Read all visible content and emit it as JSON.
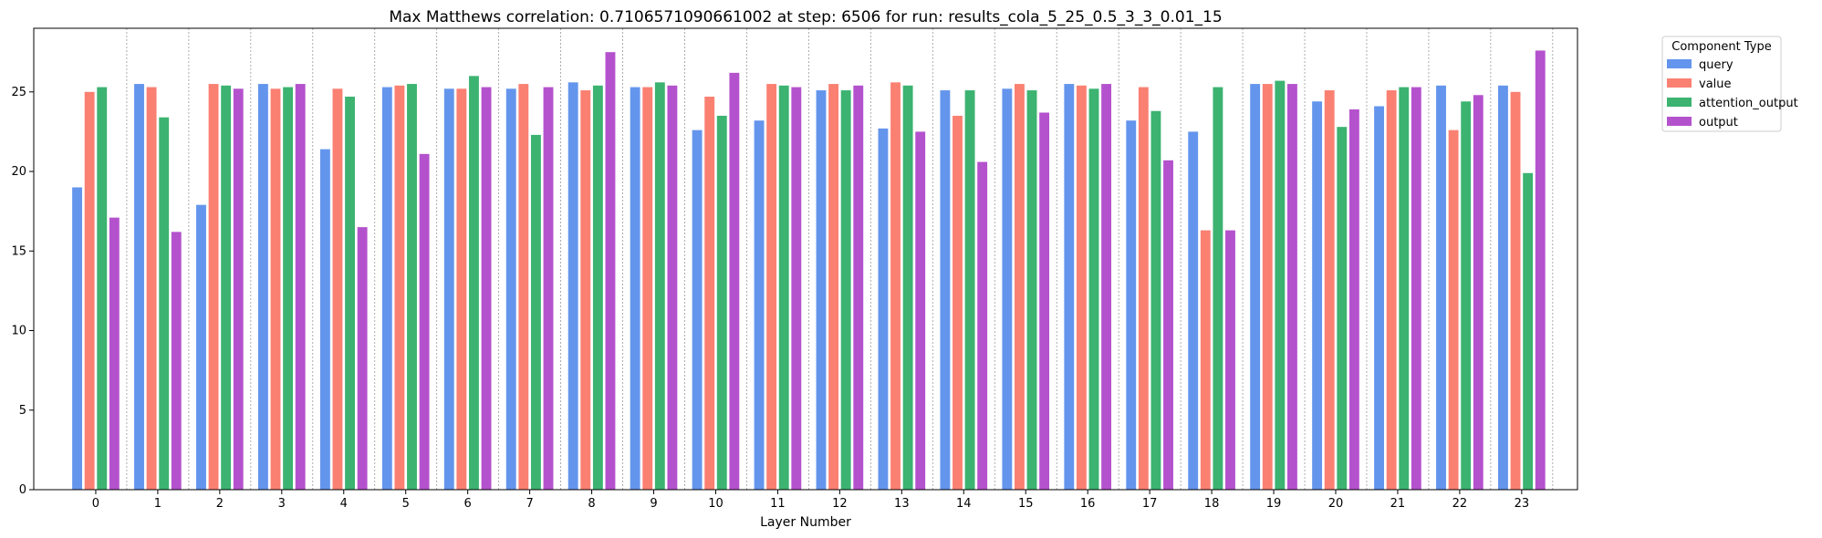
{
  "chart_data": {
    "type": "bar",
    "title": "Max Matthews correlation: 0.7106571090661002 at step: 6506 for run: results_cola_5_25_0.5_3_3_0.01_15",
    "xlabel": "Layer Number",
    "ylabel": "",
    "ylim": [
      0,
      29
    ],
    "yticks": [
      0,
      5,
      10,
      15,
      20,
      25
    ],
    "categories": [
      "0",
      "1",
      "2",
      "3",
      "4",
      "5",
      "6",
      "7",
      "8",
      "9",
      "10",
      "11",
      "12",
      "13",
      "14",
      "15",
      "16",
      "17",
      "18",
      "19",
      "20",
      "21",
      "22",
      "23"
    ],
    "grid": "vertical dotted separators between layers",
    "legend": {
      "title": "Component Type",
      "position": "outside-top-right"
    },
    "series": [
      {
        "name": "query",
        "color": "#6495ED",
        "values": [
          19.0,
          25.5,
          17.9,
          25.5,
          21.4,
          25.3,
          25.2,
          25.2,
          25.6,
          25.3,
          22.6,
          23.2,
          25.1,
          22.7,
          25.1,
          25.2,
          25.5,
          23.2,
          22.5,
          25.5,
          24.4,
          24.1,
          25.4,
          25.4
        ]
      },
      {
        "name": "value",
        "color": "#FA8072",
        "values": [
          25.0,
          25.3,
          25.5,
          25.2,
          25.2,
          25.4,
          25.2,
          25.5,
          25.1,
          25.3,
          24.7,
          25.5,
          25.5,
          25.6,
          23.5,
          25.5,
          25.4,
          25.3,
          16.3,
          25.5,
          25.1,
          25.1,
          22.6,
          25.0
        ]
      },
      {
        "name": "attention_output",
        "color": "#3CB371",
        "values": [
          25.3,
          23.4,
          25.4,
          25.3,
          24.7,
          25.5,
          26.0,
          22.3,
          25.4,
          25.6,
          23.5,
          25.4,
          25.1,
          25.4,
          25.1,
          25.1,
          25.2,
          23.8,
          25.3,
          25.7,
          22.8,
          25.3,
          24.4,
          19.9
        ]
      },
      {
        "name": "output",
        "color": "#B452CD",
        "values": [
          17.1,
          16.2,
          25.2,
          25.5,
          16.5,
          21.1,
          25.3,
          25.3,
          27.5,
          25.4,
          26.2,
          25.3,
          25.4,
          22.5,
          20.6,
          23.7,
          25.5,
          20.7,
          16.3,
          25.5,
          23.9,
          25.3,
          24.8,
          27.6
        ]
      }
    ]
  }
}
